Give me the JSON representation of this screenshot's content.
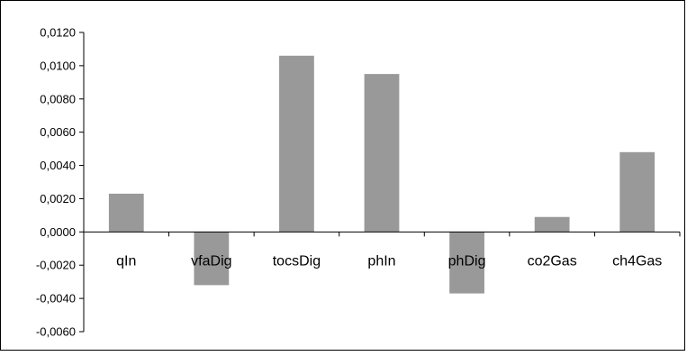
{
  "chart_data": {
    "type": "bar",
    "categories": [
      "qIn",
      "vfaDig",
      "tocsDig",
      "phIn",
      "phDig",
      "co2Gas",
      "ch4Gas"
    ],
    "values": [
      0.0023,
      -0.0032,
      0.0106,
      0.0095,
      -0.0037,
      0.0009,
      0.0048
    ],
    "title": "",
    "xlabel": "",
    "ylabel": "",
    "ylim": [
      -0.006,
      0.012
    ],
    "yticks": [
      "0,0120",
      "0,0100",
      "0,0080",
      "0,0060",
      "0,0040",
      "0,0020",
      "0,0000",
      "-0,0020",
      "-0,0040",
      "-0,0060"
    ],
    "ytick_values": [
      0.012,
      0.01,
      0.008,
      0.006,
      0.004,
      0.002,
      0.0,
      -0.002,
      -0.004,
      -0.006
    ],
    "bar_color": "#999999",
    "grid": false,
    "legend": "none"
  }
}
